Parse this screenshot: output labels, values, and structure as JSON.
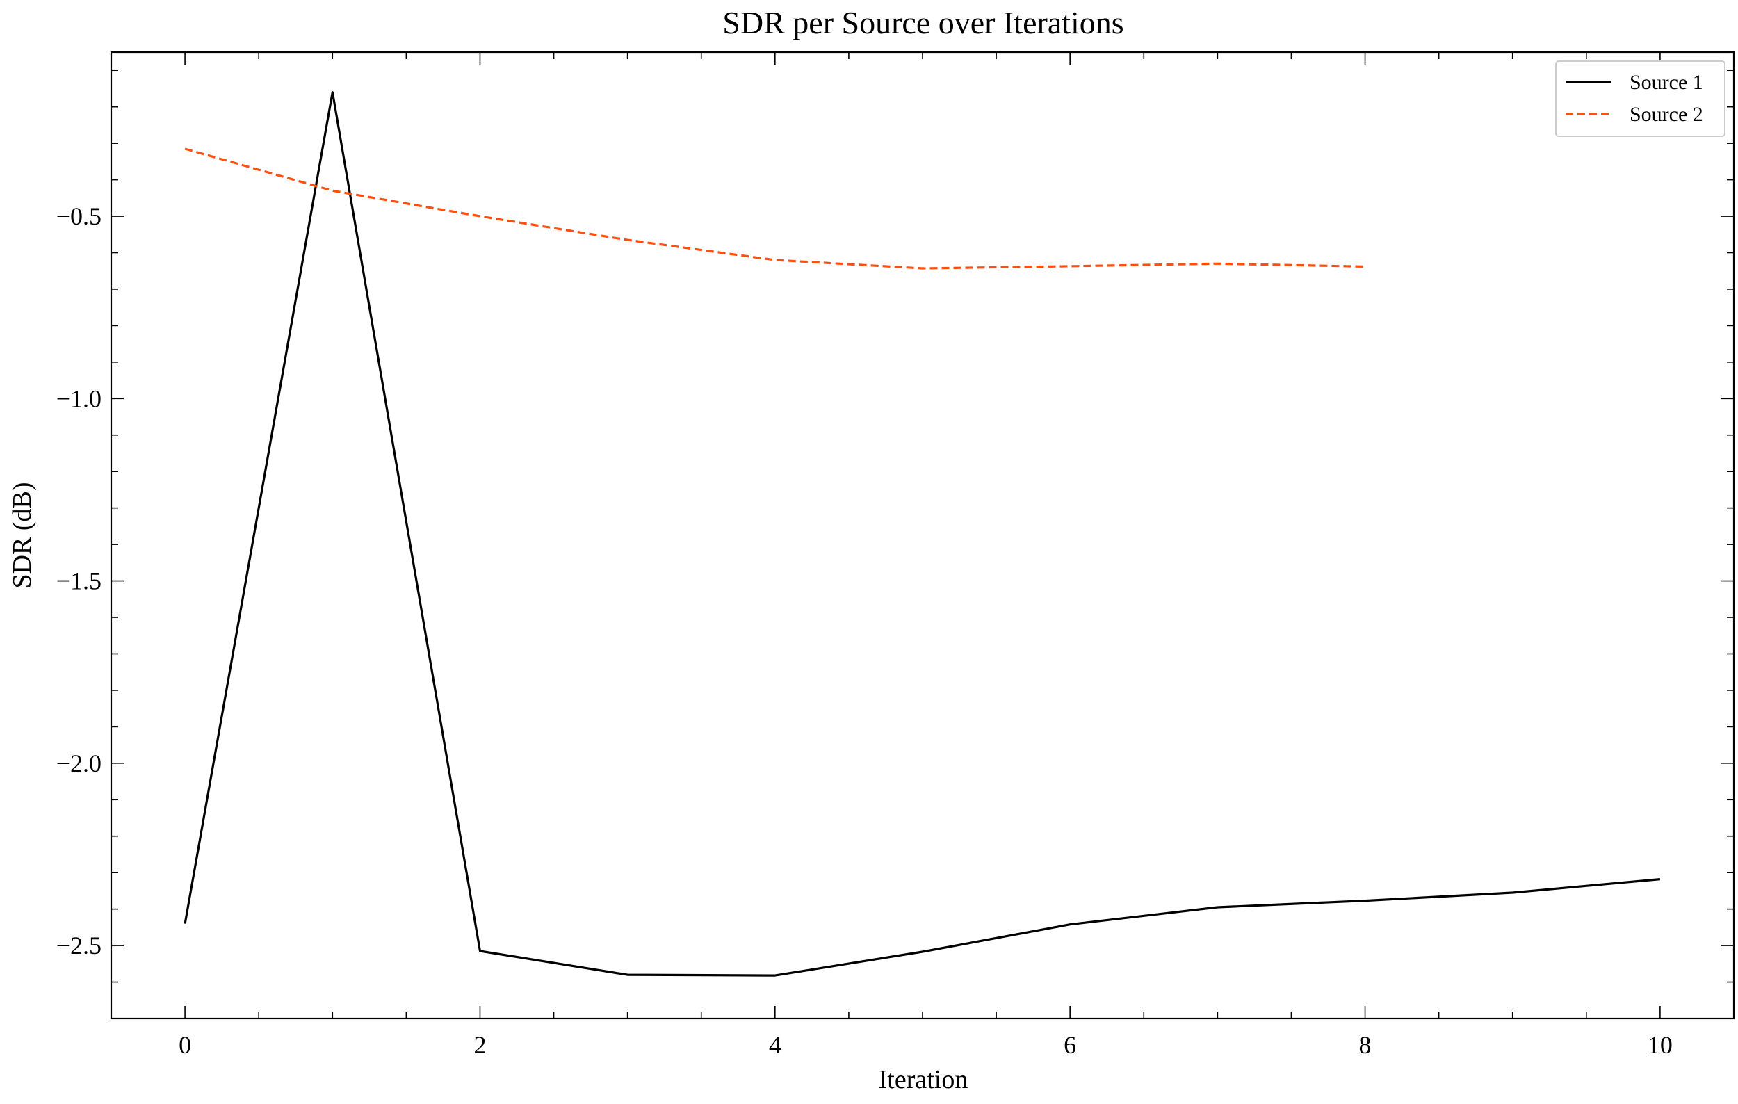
{
  "chart_data": {
    "type": "line",
    "title": "SDR per Source over Iterations",
    "xlabel": "Iteration",
    "ylabel": "SDR (dB)",
    "xlim": [
      -0.5,
      10.5
    ],
    "ylim": [
      -2.7,
      -0.05
    ],
    "x_ticks": [
      0,
      2,
      4,
      6,
      8,
      10
    ],
    "x_tick_labels": [
      "0",
      "2",
      "4",
      "6",
      "8",
      "10"
    ],
    "x_minor_step": 0.5,
    "y_ticks": [
      -2.5,
      -2.0,
      -1.5,
      -1.0,
      -0.5
    ],
    "y_tick_labels": [
      "−2.5",
      "−2.0",
      "−1.5",
      "−1.0",
      "−0.5"
    ],
    "y_minor_step": 0.1,
    "grid": false,
    "legend_position": "top-right",
    "series": [
      {
        "name": "Source 1",
        "color": "#000000",
        "line_style": "solid",
        "x": [
          0,
          1,
          2,
          3,
          4,
          5,
          6,
          7,
          8,
          9,
          10
        ],
        "values": [
          -2.44,
          -0.16,
          -2.515,
          -2.58,
          -2.582,
          -2.517,
          -2.442,
          -2.395,
          -2.377,
          -2.355,
          -2.318
        ]
      },
      {
        "name": "Source 2",
        "color": "#ff4f0f",
        "line_style": "dashed",
        "x": [
          0,
          1,
          2,
          3,
          4,
          5,
          6,
          7,
          8
        ],
        "values": [
          -0.315,
          -0.43,
          -0.5,
          -0.565,
          -0.62,
          -0.643,
          -0.637,
          -0.63,
          -0.638
        ]
      }
    ]
  }
}
